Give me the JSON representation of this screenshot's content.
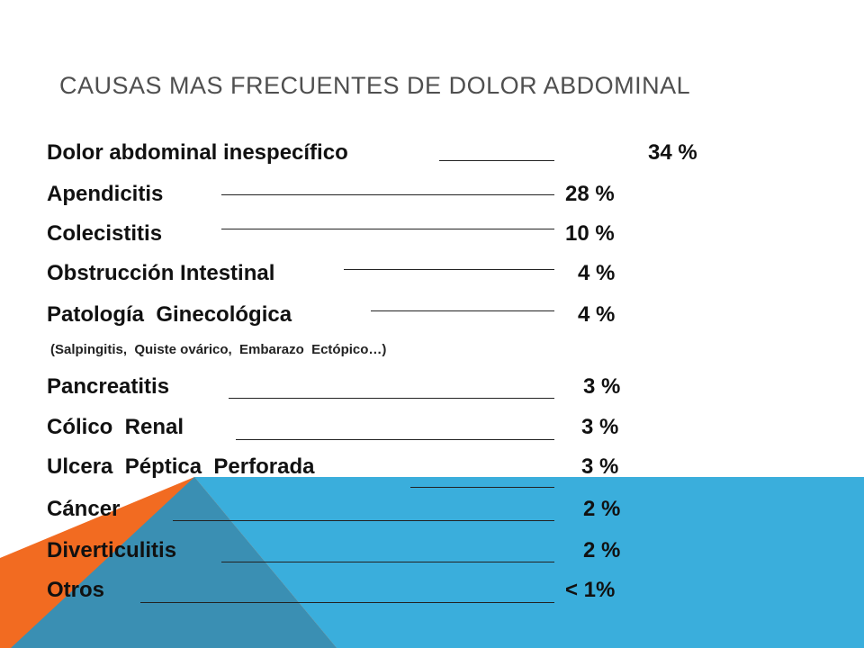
{
  "title": "CAUSAS MAS FRECUENTES DE DOLOR ABDOMINAL",
  "rows": [
    {
      "label": "Dolor abdominal inespecífico",
      "value": "34 %"
    },
    {
      "label": "Apendicitis",
      "value": "28 %"
    },
    {
      "label": "Colecistitis",
      "value": "10 %"
    },
    {
      "label": "Obstrucción Intestinal",
      "value": "4 %"
    },
    {
      "label": "Patología  Ginecológica",
      "value": "4 %"
    },
    {
      "label": "Pancreatitis",
      "value": "3 %"
    },
    {
      "label": "Cólico  Renal",
      "value": "3 %"
    },
    {
      "label": "Ulcera  Péptica  Perforada",
      "value": "3 %"
    },
    {
      "label": "Cáncer",
      "value": "2 %"
    },
    {
      "label": "Diverticulitis",
      "value": "2 %"
    },
    {
      "label": "Otros",
      "value": "< 1%"
    }
  ],
  "note": "(Salpingitis,  Quiste ovárico,  Embarazo  Ectópico…)",
  "colors": {
    "blue": "#3AAEDC",
    "orange": "#F26B21",
    "overlap": "#3A8FB3",
    "title": "#4F4F4F",
    "text": "#111111"
  }
}
